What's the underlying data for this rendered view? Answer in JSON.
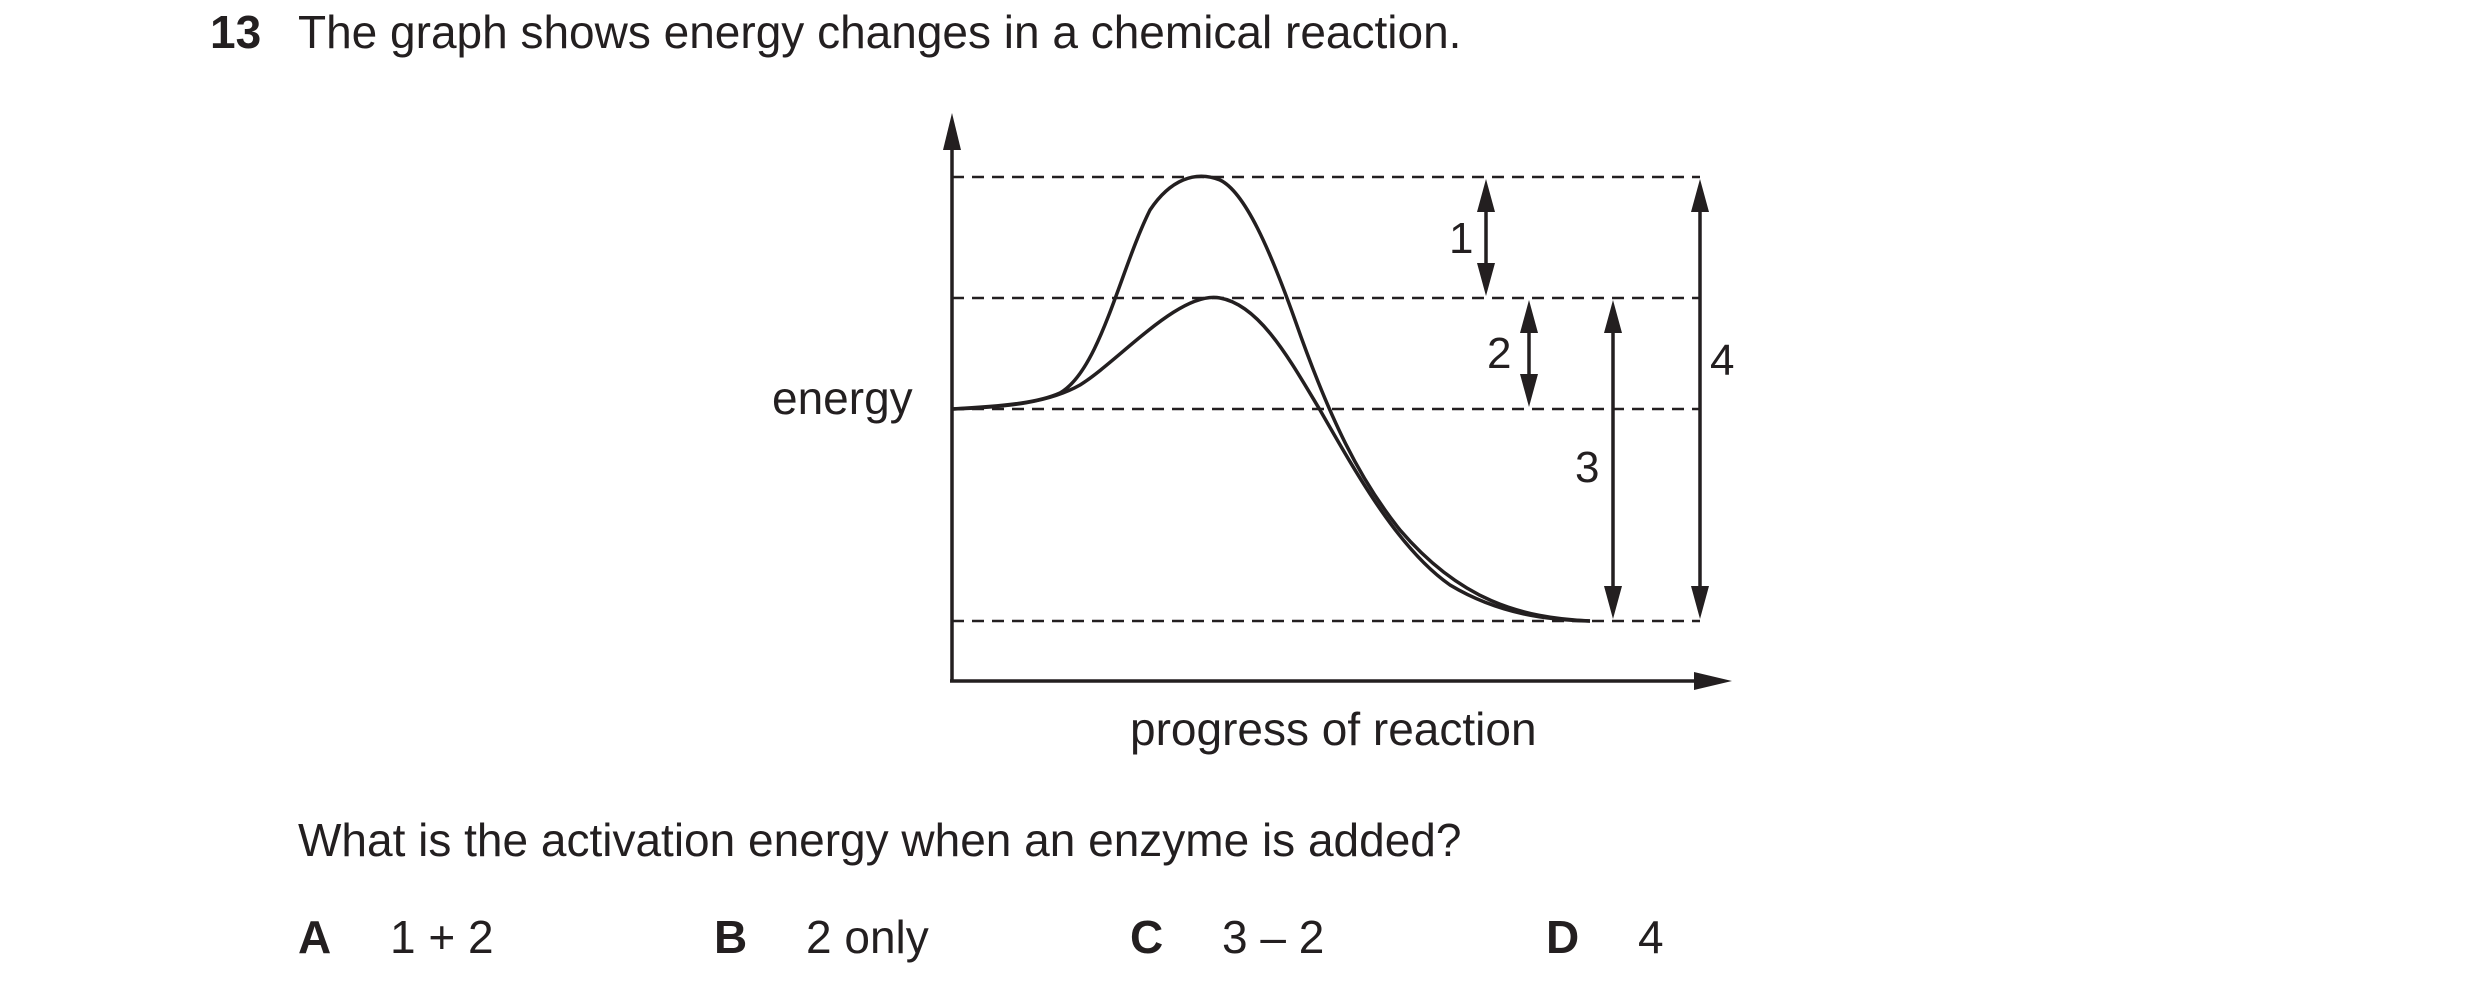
{
  "question": {
    "number": "13",
    "text": "The graph shows energy changes in a chemical reaction.",
    "prompt": "What is the activation energy when an enzyme is added?"
  },
  "graph": {
    "y_axis_label": "energy",
    "x_axis_label": "progress of reaction",
    "arrow_labels": [
      "1",
      "2",
      "3",
      "4"
    ]
  },
  "options": [
    {
      "letter": "A",
      "text": "1 + 2"
    },
    {
      "letter": "B",
      "text": "2 only"
    },
    {
      "letter": "C",
      "text": "3 – 2"
    },
    {
      "letter": "D",
      "text": "4"
    }
  ]
}
